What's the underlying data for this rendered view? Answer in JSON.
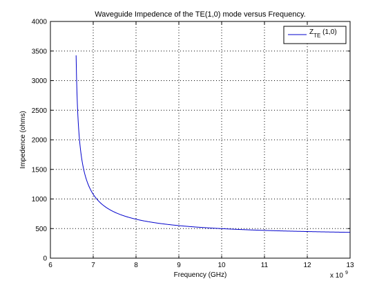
{
  "chart_data": {
    "type": "line",
    "title": "Waveguide Impedence of the TE(1,0) mode versus Frequency.",
    "xlabel": "Frequency (GHz)",
    "ylabel": "Impedence (ohms)",
    "x_exponent": "x 10",
    "x_exponent_power": "9",
    "xlim": [
      6,
      13
    ],
    "ylim": [
      0,
      4000
    ],
    "xticks": [
      6,
      7,
      8,
      9,
      10,
      11,
      12,
      13
    ],
    "yticks": [
      0,
      500,
      1000,
      1500,
      2000,
      2500,
      3000,
      3500,
      4000
    ],
    "grid": true,
    "legend_position": "top-right",
    "series": [
      {
        "name_main": "Z",
        "name_sub": "TE",
        "name_rest": " (1,0)",
        "color": "#0000cc",
        "cutoff_ghz": 6.56,
        "z0_ohms": 376.7,
        "x": [
          6.6,
          6.62,
          6.65,
          6.7,
          6.75,
          6.8,
          6.9,
          7.0,
          7.2,
          7.5,
          8.0,
          8.5,
          9.0,
          9.5,
          10.0,
          10.5,
          11.0,
          11.5,
          12.0,
          12.5,
          13.0
        ],
        "y": [
          3452,
          2604,
          2042,
          1621,
          1393,
          1243,
          1057,
          941,
          806,
          695,
          595,
          541,
          507,
          483,
          466,
          453,
          442,
          434,
          427,
          421,
          416
        ]
      }
    ]
  }
}
